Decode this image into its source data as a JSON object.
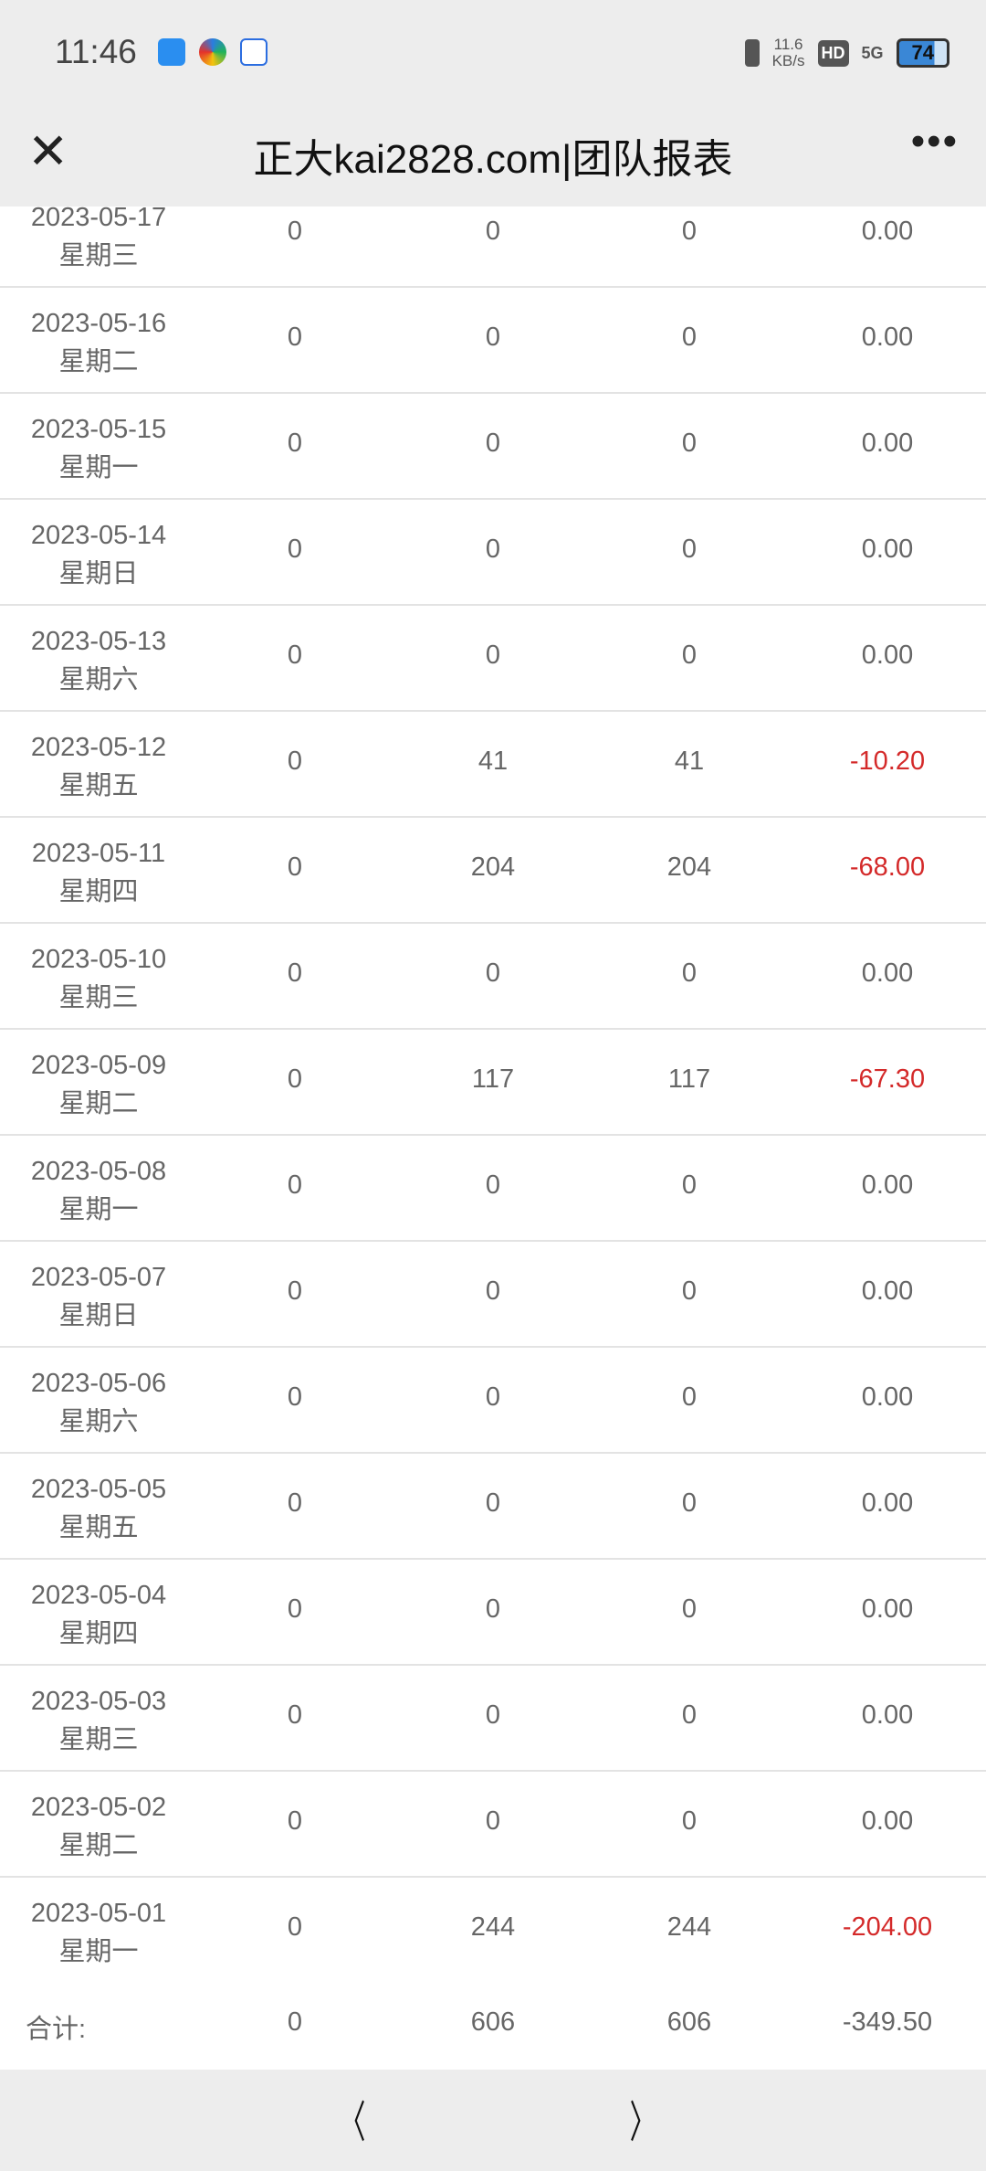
{
  "status_bar": {
    "time": "11:46",
    "net_speed": "11.6",
    "net_unit": "KB/s",
    "hd": "HD",
    "network": "5G",
    "battery": "74"
  },
  "header": {
    "title": "正大kai2828.com|团队报表",
    "close_icon": "close-icon",
    "more_icon": "more-icon"
  },
  "rows": [
    {
      "date": "2023-05-17",
      "weekday": "星期三",
      "c1": "0",
      "c2": "0",
      "c3": "0",
      "c4": "0.00",
      "neg": false
    },
    {
      "date": "2023-05-16",
      "weekday": "星期二",
      "c1": "0",
      "c2": "0",
      "c3": "0",
      "c4": "0.00",
      "neg": false
    },
    {
      "date": "2023-05-15",
      "weekday": "星期一",
      "c1": "0",
      "c2": "0",
      "c3": "0",
      "c4": "0.00",
      "neg": false
    },
    {
      "date": "2023-05-14",
      "weekday": "星期日",
      "c1": "0",
      "c2": "0",
      "c3": "0",
      "c4": "0.00",
      "neg": false
    },
    {
      "date": "2023-05-13",
      "weekday": "星期六",
      "c1": "0",
      "c2": "0",
      "c3": "0",
      "c4": "0.00",
      "neg": false
    },
    {
      "date": "2023-05-12",
      "weekday": "星期五",
      "c1": "0",
      "c2": "41",
      "c3": "41",
      "c4": "-10.20",
      "neg": true
    },
    {
      "date": "2023-05-11",
      "weekday": "星期四",
      "c1": "0",
      "c2": "204",
      "c3": "204",
      "c4": "-68.00",
      "neg": true
    },
    {
      "date": "2023-05-10",
      "weekday": "星期三",
      "c1": "0",
      "c2": "0",
      "c3": "0",
      "c4": "0.00",
      "neg": false
    },
    {
      "date": "2023-05-09",
      "weekday": "星期二",
      "c1": "0",
      "c2": "117",
      "c3": "117",
      "c4": "-67.30",
      "neg": true
    },
    {
      "date": "2023-05-08",
      "weekday": "星期一",
      "c1": "0",
      "c2": "0",
      "c3": "0",
      "c4": "0.00",
      "neg": false
    },
    {
      "date": "2023-05-07",
      "weekday": "星期日",
      "c1": "0",
      "c2": "0",
      "c3": "0",
      "c4": "0.00",
      "neg": false
    },
    {
      "date": "2023-05-06",
      "weekday": "星期六",
      "c1": "0",
      "c2": "0",
      "c3": "0",
      "c4": "0.00",
      "neg": false
    },
    {
      "date": "2023-05-05",
      "weekday": "星期五",
      "c1": "0",
      "c2": "0",
      "c3": "0",
      "c4": "0.00",
      "neg": false
    },
    {
      "date": "2023-05-04",
      "weekday": "星期四",
      "c1": "0",
      "c2": "0",
      "c3": "0",
      "c4": "0.00",
      "neg": false
    },
    {
      "date": "2023-05-03",
      "weekday": "星期三",
      "c1": "0",
      "c2": "0",
      "c3": "0",
      "c4": "0.00",
      "neg": false
    },
    {
      "date": "2023-05-02",
      "weekday": "星期二",
      "c1": "0",
      "c2": "0",
      "c3": "0",
      "c4": "0.00",
      "neg": false
    },
    {
      "date": "2023-05-01",
      "weekday": "星期一",
      "c1": "0",
      "c2": "244",
      "c3": "244",
      "c4": "-204.00",
      "neg": true
    }
  ],
  "total": {
    "label": "合计:",
    "c1": "0",
    "c2": "606",
    "c3": "606",
    "c4": "-349.50"
  },
  "footer": {
    "prev": "〈",
    "next": "〉"
  },
  "colors": {
    "negative": "#d42a2a",
    "text": "#666666"
  }
}
